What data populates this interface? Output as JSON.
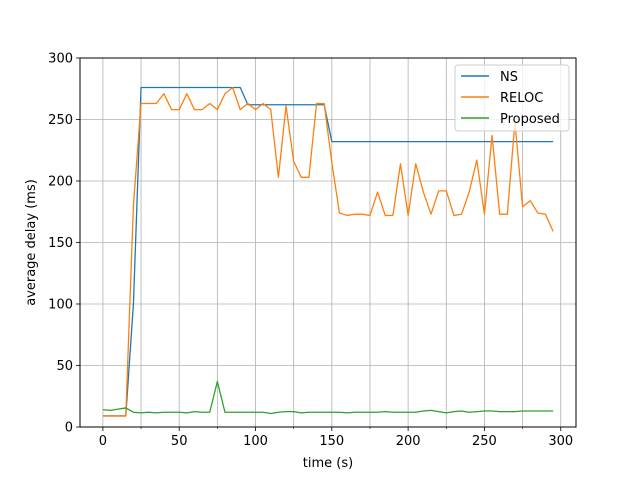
{
  "chart_data": {
    "type": "line",
    "title": "",
    "xlabel": "time (s)",
    "ylabel": "average delay (ms)",
    "xlim": [
      -15,
      310
    ],
    "ylim": [
      0,
      300
    ],
    "xticks": [
      0,
      50,
      100,
      150,
      200,
      250,
      300
    ],
    "yticks": [
      0,
      50,
      100,
      150,
      200,
      250,
      300
    ],
    "grid": true,
    "legend_position": "top-right",
    "series": [
      {
        "name": "NS",
        "color": "#1f77b4",
        "x": [
          0,
          5,
          10,
          15,
          20,
          25,
          30,
          35,
          40,
          45,
          50,
          55,
          60,
          65,
          70,
          75,
          80,
          85,
          90,
          95,
          100,
          105,
          110,
          115,
          120,
          125,
          130,
          135,
          140,
          145,
          150,
          155,
          160,
          165,
          170,
          175,
          180,
          185,
          190,
          195,
          200,
          205,
          210,
          215,
          220,
          225,
          230,
          235,
          240,
          245,
          250,
          255,
          260,
          265,
          270,
          275,
          280,
          285,
          290,
          295
        ],
        "y": [
          9,
          9,
          9,
          9,
          100,
          276,
          276,
          276,
          276,
          276,
          276,
          276,
          276,
          276,
          276,
          276,
          276,
          276,
          276,
          262,
          262,
          262,
          262,
          262,
          262,
          262,
          262,
          262,
          262,
          262,
          232,
          232,
          232,
          232,
          232,
          232,
          232,
          232,
          232,
          232,
          232,
          232,
          232,
          232,
          232,
          232,
          232,
          232,
          232,
          232,
          232,
          232,
          232,
          232,
          232,
          232,
          232,
          232,
          232,
          232
        ]
      },
      {
        "name": "RELOC",
        "color": "#ff7f0e",
        "x": [
          0,
          5,
          10,
          15,
          20,
          25,
          30,
          35,
          40,
          45,
          50,
          55,
          60,
          65,
          70,
          75,
          80,
          85,
          90,
          95,
          100,
          105,
          110,
          115,
          120,
          125,
          130,
          135,
          140,
          145,
          150,
          155,
          160,
          165,
          170,
          175,
          180,
          185,
          190,
          195,
          200,
          205,
          210,
          215,
          220,
          225,
          230,
          235,
          240,
          245,
          250,
          255,
          260,
          265,
          270,
          275,
          280,
          285,
          290,
          295
        ],
        "y": [
          9,
          9,
          9,
          9,
          180,
          263,
          263,
          263,
          271,
          258,
          258,
          271,
          258,
          258,
          263,
          258,
          271,
          276,
          258,
          263,
          258,
          263,
          258,
          203,
          261,
          216,
          203,
          203,
          263,
          263,
          215,
          174,
          172,
          173,
          173,
          172,
          191,
          172,
          172,
          214,
          172,
          214,
          191,
          173,
          192,
          192,
          172,
          173,
          191,
          217,
          173,
          237,
          173,
          173,
          248,
          179,
          184,
          174,
          173,
          159
        ]
      },
      {
        "name": "Proposed",
        "color": "#2ca02c",
        "x": [
          0,
          5,
          10,
          15,
          20,
          25,
          30,
          35,
          40,
          45,
          50,
          55,
          60,
          65,
          70,
          75,
          80,
          85,
          90,
          95,
          100,
          105,
          110,
          115,
          120,
          125,
          130,
          135,
          140,
          145,
          150,
          155,
          160,
          165,
          170,
          175,
          180,
          185,
          190,
          195,
          200,
          205,
          210,
          215,
          220,
          225,
          230,
          235,
          240,
          245,
          250,
          255,
          260,
          265,
          270,
          275,
          280,
          285,
          290,
          295
        ],
        "y": [
          14,
          13.5,
          14.5,
          15.5,
          12,
          11.5,
          12,
          11.5,
          12,
          12,
          12,
          11.5,
          12.5,
          12,
          12,
          37,
          12,
          12,
          12,
          12,
          12,
          12,
          11,
          12,
          12.5,
          12.5,
          11.5,
          12,
          12,
          12,
          12,
          12,
          11.5,
          12,
          12,
          12,
          12,
          12.5,
          12,
          12,
          12,
          12,
          13,
          13.5,
          12.5,
          11.5,
          12.5,
          13,
          12,
          12.5,
          13,
          13,
          12.5,
          12.5,
          12.5,
          13,
          13,
          13,
          13,
          13
        ]
      }
    ]
  }
}
